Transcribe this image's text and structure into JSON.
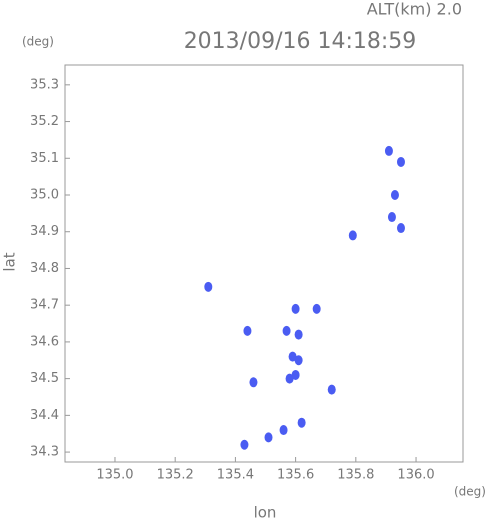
{
  "chart_data": {
    "type": "scatter",
    "title": "2013/09/16 14:18:59",
    "subtitle": "ALT(km) 2.0",
    "x_label": "lon",
    "y_label": "lat",
    "x_unit": "(deg)",
    "y_unit": "(deg)",
    "color": "#4a5cf2",
    "x": [
      135.91,
      135.95,
      135.93,
      135.92,
      135.95,
      135.79,
      135.31,
      135.6,
      135.67,
      135.44,
      135.57,
      135.61,
      135.59,
      135.61,
      135.6,
      135.58,
      135.46,
      135.72,
      135.62,
      135.56,
      135.51,
      135.43
    ],
    "values": [
      35.12,
      35.09,
      35.0,
      34.94,
      34.91,
      34.89,
      34.75,
      34.69,
      34.69,
      34.63,
      34.63,
      34.62,
      34.56,
      34.55,
      34.51,
      34.5,
      34.49,
      34.47,
      34.38,
      34.36,
      34.34,
      34.32
    ],
    "xlim": [
      134.834,
      136.156
    ],
    "ylim": [
      34.273,
      35.354
    ],
    "xticks": [
      {
        "value": 135.0,
        "label": "135.0"
      },
      135.2,
      135.4,
      135.6,
      135.8,
      {
        "value": 136.0,
        "label": "136.0"
      }
    ],
    "yticks": [
      34.3,
      34.4,
      34.5,
      34.6,
      34.7,
      34.8,
      34.9,
      {
        "value": 35.0,
        "label": "35.0"
      },
      35.1,
      35.2,
      35.3
    ]
  }
}
